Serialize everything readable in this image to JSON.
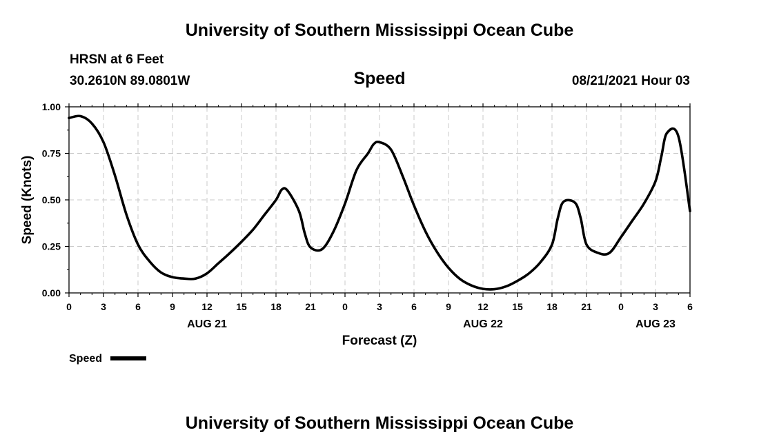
{
  "header": {
    "title": "University of Southern Mississippi Ocean Cube",
    "station": "HRSN at 6 Feet",
    "coords": "30.2610N  89.0801W",
    "chart_title": "Speed",
    "datetime": "08/21/2021 Hour 03",
    "footer_title": "University of Southern Mississippi Ocean Cube"
  },
  "legend": {
    "label": "Speed",
    "color": "#000000"
  },
  "chart_data": {
    "type": "line",
    "title": "Speed",
    "xlabel": "Forecast (Z)",
    "ylabel": "Speed (Knots)",
    "ylim": [
      0,
      1
    ],
    "y_ticks": [
      "0.00",
      "0.25",
      "0.50",
      "0.75",
      "1.00"
    ],
    "x_ticks": [
      "0",
      "3",
      "6",
      "9",
      "12",
      "15",
      "18",
      "21",
      "0",
      "3",
      "6",
      "9",
      "12",
      "15",
      "18",
      "21",
      "0",
      "3",
      "6"
    ],
    "date_labels": [
      {
        "label": "AUG 21",
        "at_hour": 12
      },
      {
        "label": "AUG 22",
        "at_hour": 36
      },
      {
        "label": "AUG 23",
        "at_hour": 51
      }
    ],
    "grid": true,
    "series": [
      {
        "name": "Speed",
        "x": [
          0,
          1,
          2,
          3,
          4,
          5,
          6,
          7,
          8,
          9,
          10,
          11,
          12,
          13,
          14,
          15,
          16,
          17,
          18,
          18.5,
          19,
          20,
          20.5,
          21,
          22,
          23,
          24,
          25,
          26,
          26.5,
          27,
          28,
          29,
          30,
          31,
          32,
          33,
          34,
          35,
          36,
          37,
          38,
          39,
          40,
          41,
          42,
          42.5,
          43,
          44,
          44.5,
          45,
          46,
          47,
          48,
          49,
          50,
          51,
          51.5,
          52,
          53,
          54
        ],
        "values": [
          0.94,
          0.95,
          0.91,
          0.81,
          0.63,
          0.42,
          0.26,
          0.17,
          0.11,
          0.085,
          0.077,
          0.077,
          0.105,
          0.16,
          0.215,
          0.275,
          0.34,
          0.42,
          0.5,
          0.555,
          0.55,
          0.44,
          0.32,
          0.245,
          0.235,
          0.33,
          0.48,
          0.66,
          0.75,
          0.8,
          0.81,
          0.77,
          0.63,
          0.47,
          0.33,
          0.22,
          0.135,
          0.075,
          0.04,
          0.022,
          0.02,
          0.035,
          0.065,
          0.105,
          0.165,
          0.26,
          0.4,
          0.49,
          0.485,
          0.4,
          0.26,
          0.215,
          0.215,
          0.3,
          0.39,
          0.48,
          0.6,
          0.73,
          0.86,
          0.84,
          0.44
        ]
      }
    ]
  }
}
